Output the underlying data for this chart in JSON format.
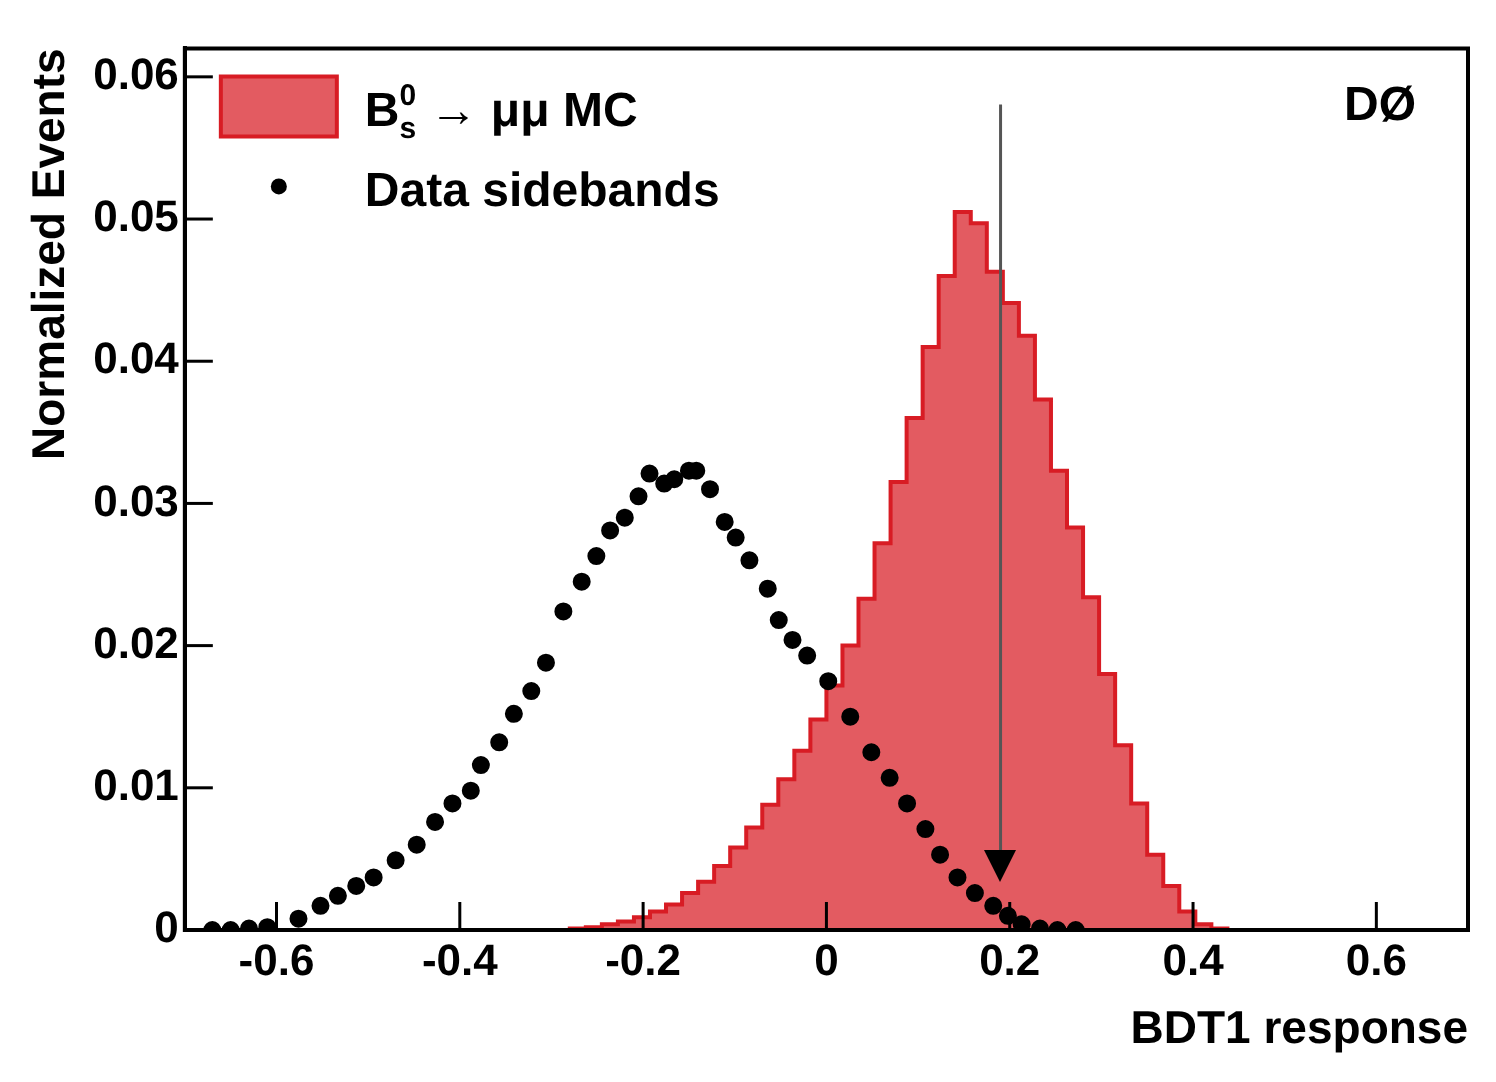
{
  "chart_data": {
    "type": "histogram",
    "xlabel": "BDT1 response",
    "ylabel": "Normalized Events",
    "annotations": [
      "DØ"
    ],
    "xlim": [
      -0.7,
      0.7
    ],
    "ylim": [
      0,
      0.062
    ],
    "xticks": [
      -0.6,
      -0.4,
      -0.2,
      0,
      0.2,
      0.4,
      0.6
    ],
    "yticks": [
      0,
      0.01,
      0.02,
      0.03,
      0.04,
      0.05,
      0.06
    ],
    "legend": "top left",
    "marker": "circle",
    "ref_lines": [
      {
        "axis": "x",
        "value": 0.19,
        "color": "#555555"
      }
    ],
    "series": [
      {
        "name": "B$_{s}$$^{0}$ → μμ MC",
        "color": "#d81c24",
        "bins": [
          -0.7,
          -0.6825,
          -0.665,
          -0.6475,
          -0.63,
          -0.6125,
          -0.595,
          -0.5775,
          -0.56,
          -0.5425,
          -0.525,
          -0.5075,
          -0.49,
          -0.4725,
          -0.455,
          -0.4375,
          -0.42,
          -0.4025,
          -0.385,
          -0.3675,
          -0.35,
          -0.3325,
          -0.315,
          -0.2975,
          -0.28,
          -0.2625,
          -0.245,
          -0.2275,
          -0.21,
          -0.1925,
          -0.175,
          -0.1575,
          -0.14,
          -0.1225,
          -0.105,
          -0.0875,
          -0.07,
          -0.0525,
          -0.035,
          -0.0175,
          0,
          0.0175,
          0.035,
          0.0525,
          0.07,
          0.0875,
          0.105,
          0.1225,
          0.14,
          0.1575,
          0.175,
          0.1925,
          0.21,
          0.2275,
          0.245,
          0.2625,
          0.28,
          0.2975,
          0.315,
          0.3325,
          0.35,
          0.3675,
          0.385,
          0.4025,
          0.42,
          0.4375,
          0.455,
          0.4725,
          0.49,
          0.5075,
          0.525,
          0.5425,
          0.56,
          0.5775,
          0.595,
          0.6125,
          0.63,
          0.6475,
          0.665,
          0.6825,
          0.7
        ],
        "values": [
          0,
          0,
          0,
          0,
          0,
          0,
          0,
          0,
          0,
          0,
          0,
          0,
          0,
          0,
          0,
          0,
          0,
          0,
          0,
          0,
          0,
          0,
          0,
          0,
          0.0001,
          0.0002,
          0.0004,
          0.0006,
          0.0009,
          0.0013,
          0.0018,
          0.0026,
          0.0034,
          0.0045,
          0.0058,
          0.0072,
          0.0088,
          0.0106,
          0.0126,
          0.0148,
          0.0172,
          0.02,
          0.0233,
          0.0272,
          0.0315,
          0.036,
          0.041,
          0.046,
          0.0505,
          0.0497,
          0.0463,
          0.0441,
          0.0418,
          0.0373,
          0.0323,
          0.0283,
          0.0234,
          0.018,
          0.013,
          0.0089,
          0.0053,
          0.0031,
          0.0013,
          0.0004,
          0.0001,
          0,
          0,
          0,
          0,
          0,
          0,
          0,
          0,
          0,
          0,
          0,
          0,
          0,
          0,
          0
        ]
      },
      {
        "name": "Data sidebands",
        "type": "scatter",
        "color": "#000000",
        "x": [
          -0.67,
          -0.65,
          -0.63,
          -0.61,
          -0.576,
          -0.552,
          -0.533,
          -0.513,
          -0.494,
          -0.47,
          -0.447,
          -0.427,
          -0.408,
          -0.388,
          -0.377,
          -0.357,
          -0.341,
          -0.322,
          -0.306,
          -0.287,
          -0.267,
          -0.251,
          -0.236,
          -0.22,
          -0.205,
          -0.193,
          -0.177,
          -0.166,
          -0.15,
          -0.142,
          -0.127,
          -0.111,
          -0.099,
          -0.084,
          -0.064,
          -0.052,
          -0.037,
          -0.021,
          0.002,
          0.026,
          0.049,
          0.069,
          0.088,
          0.108,
          0.124,
          0.143,
          0.162,
          0.182,
          0.198,
          0.213,
          0.233,
          0.252,
          0.272
        ],
        "values": [
          0,
          0,
          0.0001,
          0.0002,
          0.0008,
          0.0017,
          0.0024,
          0.0031,
          0.0037,
          0.0049,
          0.006,
          0.0076,
          0.0089,
          0.0098,
          0.0116,
          0.0132,
          0.0152,
          0.0168,
          0.0188,
          0.0224,
          0.0245,
          0.0263,
          0.0281,
          0.029,
          0.0305,
          0.0321,
          0.0314,
          0.0317,
          0.0323,
          0.0323,
          0.031,
          0.0287,
          0.0276,
          0.026,
          0.024,
          0.0218,
          0.0204,
          0.0193,
          0.0175,
          0.015,
          0.0125,
          0.0107,
          0.0089,
          0.0071,
          0.0053,
          0.0037,
          0.0026,
          0.0017,
          0.001,
          0.0004,
          0.0001,
          0,
          0
        ]
      }
    ]
  }
}
